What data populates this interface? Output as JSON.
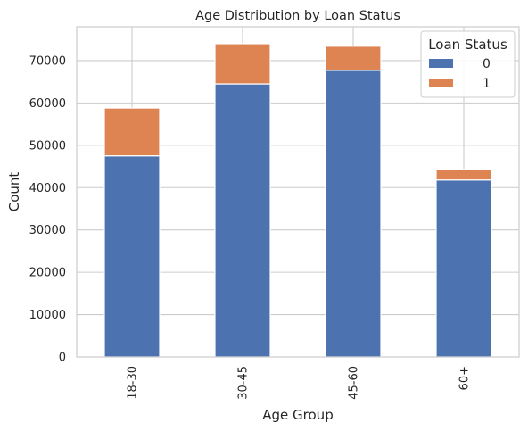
{
  "chart_data": {
    "type": "bar",
    "stacked": true,
    "title": "Age Distribution by Loan Status",
    "xlabel": "Age Group",
    "ylabel": "Count",
    "categories": [
      "18-30",
      "30-45",
      "45-60",
      "60+"
    ],
    "series": [
      {
        "name": "0",
        "values": [
          47500,
          64500,
          67700,
          41800
        ],
        "color": "#4c72b0"
      },
      {
        "name": "1",
        "values": [
          11300,
          9500,
          5700,
          2500
        ],
        "color": "#dd8452"
      }
    ],
    "ylim": [
      0,
      78000
    ],
    "yticks": [
      0,
      10000,
      20000,
      30000,
      40000,
      50000,
      60000,
      70000
    ],
    "grid": true,
    "legend": {
      "title": "Loan Status",
      "placement": "top-right"
    }
  }
}
